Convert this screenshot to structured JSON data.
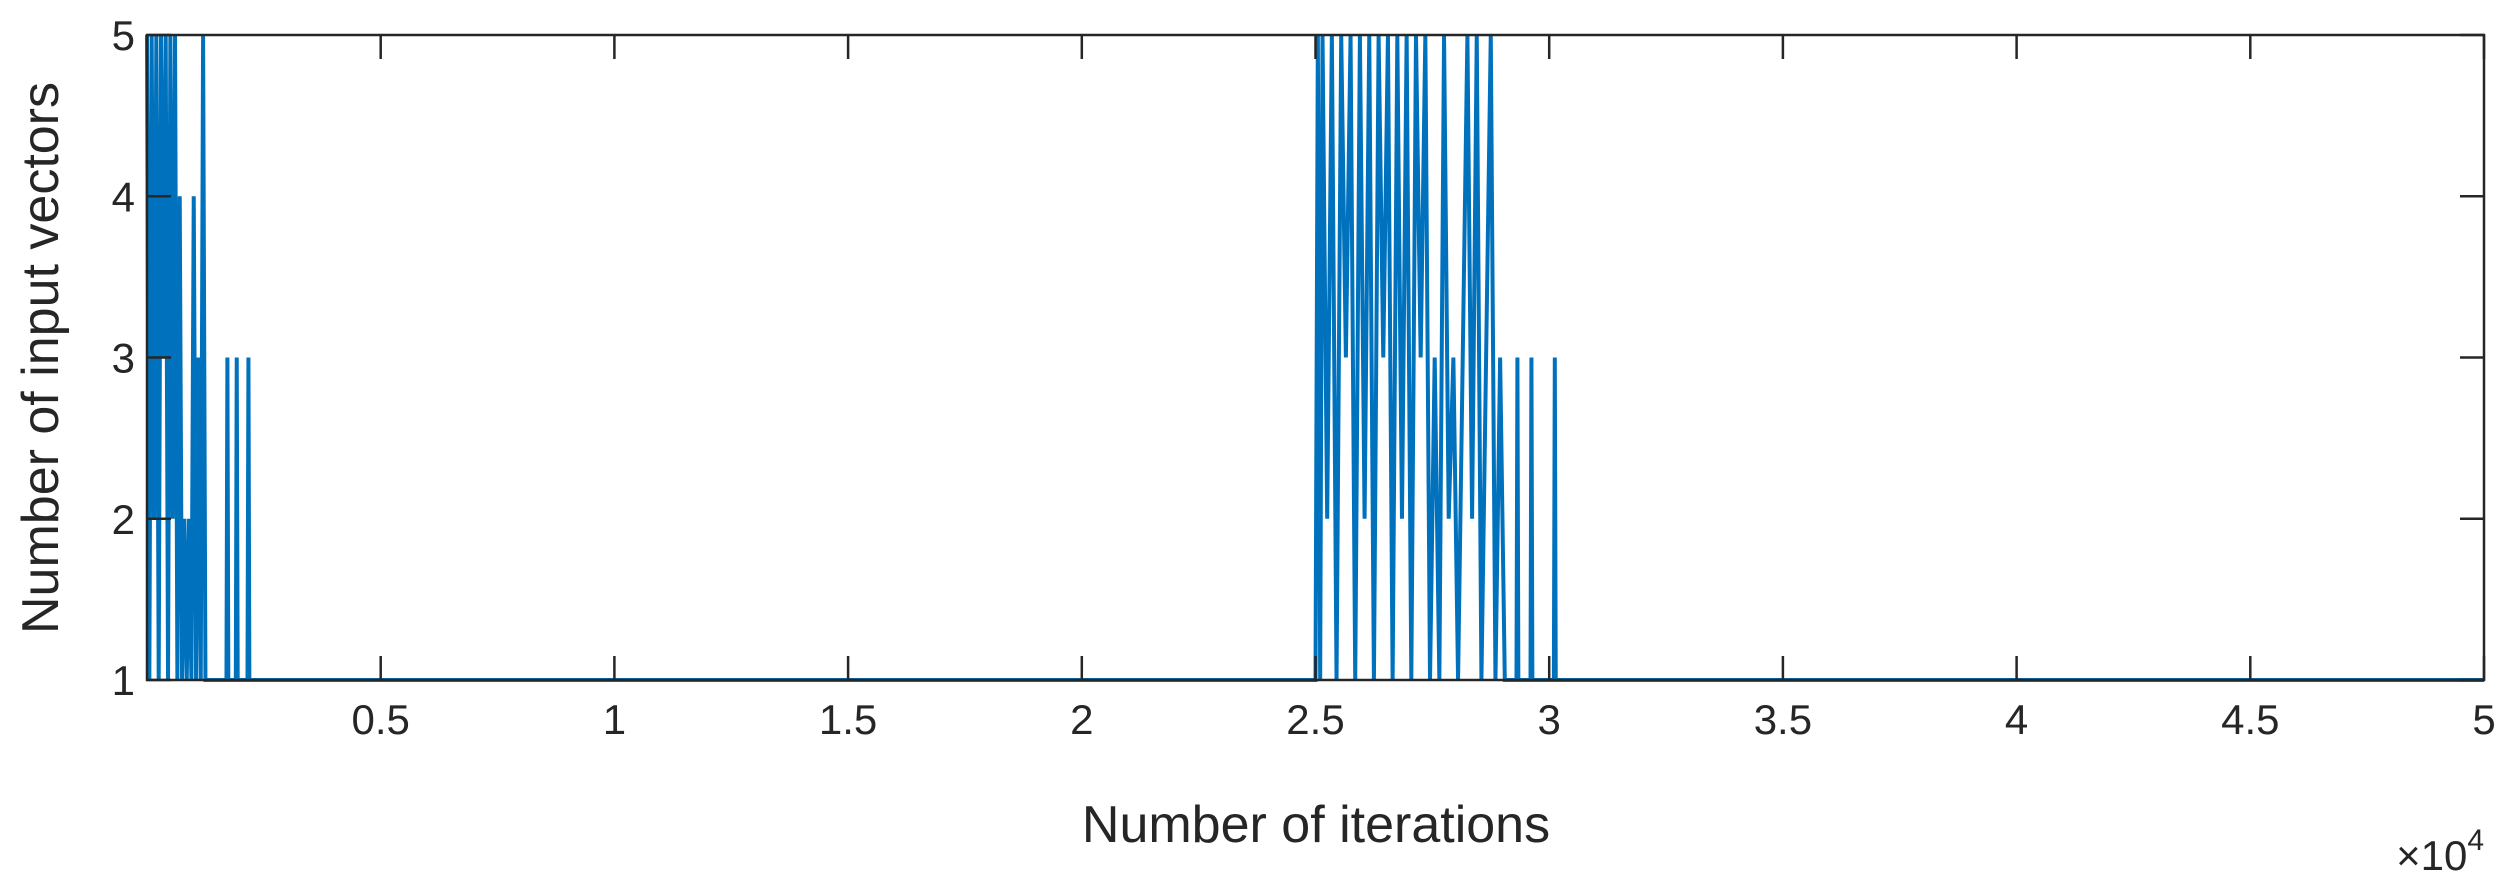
{
  "chart_data": {
    "type": "line",
    "xlabel": "Number of iterations",
    "ylabel": "Number of input vectors",
    "x_exponent": {
      "base": "×10",
      "power": "4"
    },
    "xlim": [
      0,
      50000
    ],
    "ylim": [
      1,
      5
    ],
    "xticks": [
      {
        "value": 5000,
        "label": "0.5"
      },
      {
        "value": 10000,
        "label": "1"
      },
      {
        "value": 15000,
        "label": "1.5"
      },
      {
        "value": 20000,
        "label": "2"
      },
      {
        "value": 25000,
        "label": "2.5"
      },
      {
        "value": 30000,
        "label": "3"
      },
      {
        "value": 35000,
        "label": "3.5"
      },
      {
        "value": 40000,
        "label": "4"
      },
      {
        "value": 45000,
        "label": "4.5"
      },
      {
        "value": 50000,
        "label": "5"
      }
    ],
    "yticks": [
      1,
      2,
      3,
      4,
      5
    ],
    "grid": false,
    "series": [
      {
        "color": "#0072bd",
        "x": [
          0,
          50,
          100,
          150,
          200,
          250,
          300,
          350,
          400,
          450,
          500,
          550,
          600,
          650,
          700,
          750,
          800,
          850,
          900,
          950,
          1000,
          1050,
          1100,
          1150,
          1200,
          1250,
          1700,
          1720,
          1740,
          1900,
          1920,
          1940,
          2150,
          2170,
          2190,
          25000,
          25050,
          25100,
          25150,
          25250,
          25350,
          25450,
          25550,
          25650,
          25750,
          25850,
          25950,
          26050,
          26150,
          26250,
          26350,
          26450,
          26550,
          26650,
          26750,
          26850,
          26950,
          27050,
          27150,
          27250,
          27350,
          27450,
          27550,
          27650,
          27750,
          27850,
          27950,
          28050,
          28150,
          28250,
          28350,
          28450,
          28550,
          28650,
          28750,
          28850,
          28950,
          29050,
          29300,
          29320,
          29340,
          29600,
          29620,
          29640,
          30100,
          30120,
          30140,
          50000
        ],
        "values": [
          5,
          1,
          5,
          2,
          5,
          1,
          5,
          3,
          5,
          1,
          5,
          2,
          5,
          1,
          4,
          1,
          2,
          1,
          2,
          1,
          4,
          1,
          3,
          1,
          5,
          1,
          1,
          3,
          1,
          1,
          3,
          1,
          1,
          3,
          1,
          1,
          5,
          1,
          5,
          2,
          5,
          1,
          5,
          3,
          5,
          1,
          5,
          2,
          5,
          1,
          5,
          3,
          5,
          1,
          5,
          2,
          5,
          1,
          5,
          3,
          5,
          1,
          3,
          1,
          5,
          2,
          3,
          1,
          3,
          5,
          2,
          5,
          1,
          3,
          5,
          1,
          3,
          1,
          1,
          3,
          1,
          1,
          3,
          1,
          1,
          3,
          1,
          1
        ]
      }
    ]
  }
}
